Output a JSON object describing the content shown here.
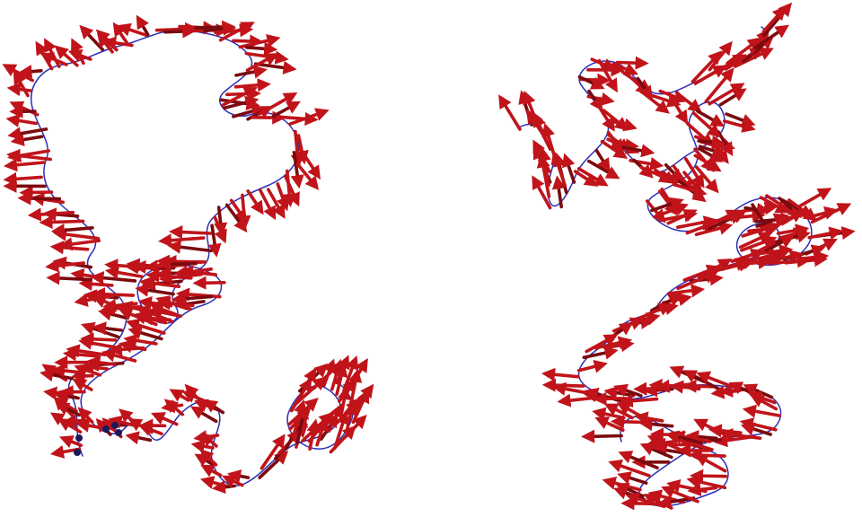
{
  "figure": {
    "panels": [
      {
        "id": "left",
        "description_label": ""
      },
      {
        "id": "right",
        "description_label": ""
      }
    ],
    "colors": {
      "backbone": "#2b2fb8",
      "arrow": "#c0141a",
      "arrow_dark": "#7a0a0e",
      "background": "#ffffff"
    }
  }
}
